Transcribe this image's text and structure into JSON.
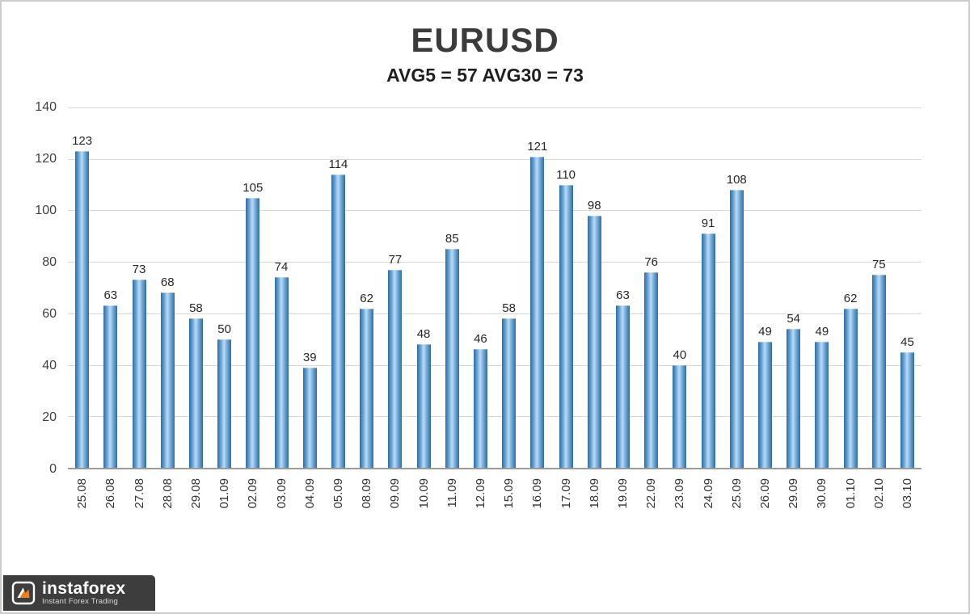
{
  "header": {
    "title": "EURUSD",
    "subtitle": "AVG5 = 57 AVG30 = 73"
  },
  "chart_data": {
    "type": "bar",
    "title": "EURUSD",
    "subtitle": "AVG5 = 57 AVG30 = 73",
    "categories": [
      "25.08",
      "26.08",
      "27.08",
      "28.08",
      "29.08",
      "01.09",
      "02.09",
      "03.09",
      "04.09",
      "05.09",
      "08.09",
      "09.09",
      "10.09",
      "11.09",
      "12.09",
      "15.09",
      "16.09",
      "17.09",
      "18.09",
      "19.09",
      "22.09",
      "23.09",
      "24.09",
      "25.09",
      "26.09",
      "29.09",
      "30.09",
      "01.10",
      "02.10",
      "03.10"
    ],
    "values": [
      123,
      63,
      73,
      68,
      58,
      50,
      105,
      74,
      39,
      114,
      62,
      77,
      48,
      85,
      46,
      58,
      121,
      110,
      98,
      63,
      76,
      40,
      91,
      108,
      49,
      54,
      49,
      62,
      75,
      45
    ],
    "avg5": 57,
    "avg30": 73,
    "ylim": [
      0,
      140
    ],
    "yticks": [
      0,
      20,
      40,
      60,
      80,
      100,
      120,
      140
    ],
    "grid": "horizontal",
    "legend": "none",
    "data_labels": true,
    "bar_color": "#5b9bd5",
    "bar_gradient_edge": "#2f6ba3",
    "bar_gradient_center": "#b9dcf5",
    "gridline_color": "#d9d9d9",
    "axis_text_color": "#3f3f3f"
  },
  "watermark": {
    "brand": "instaforex",
    "tagline": "Instant Forex Trading"
  }
}
